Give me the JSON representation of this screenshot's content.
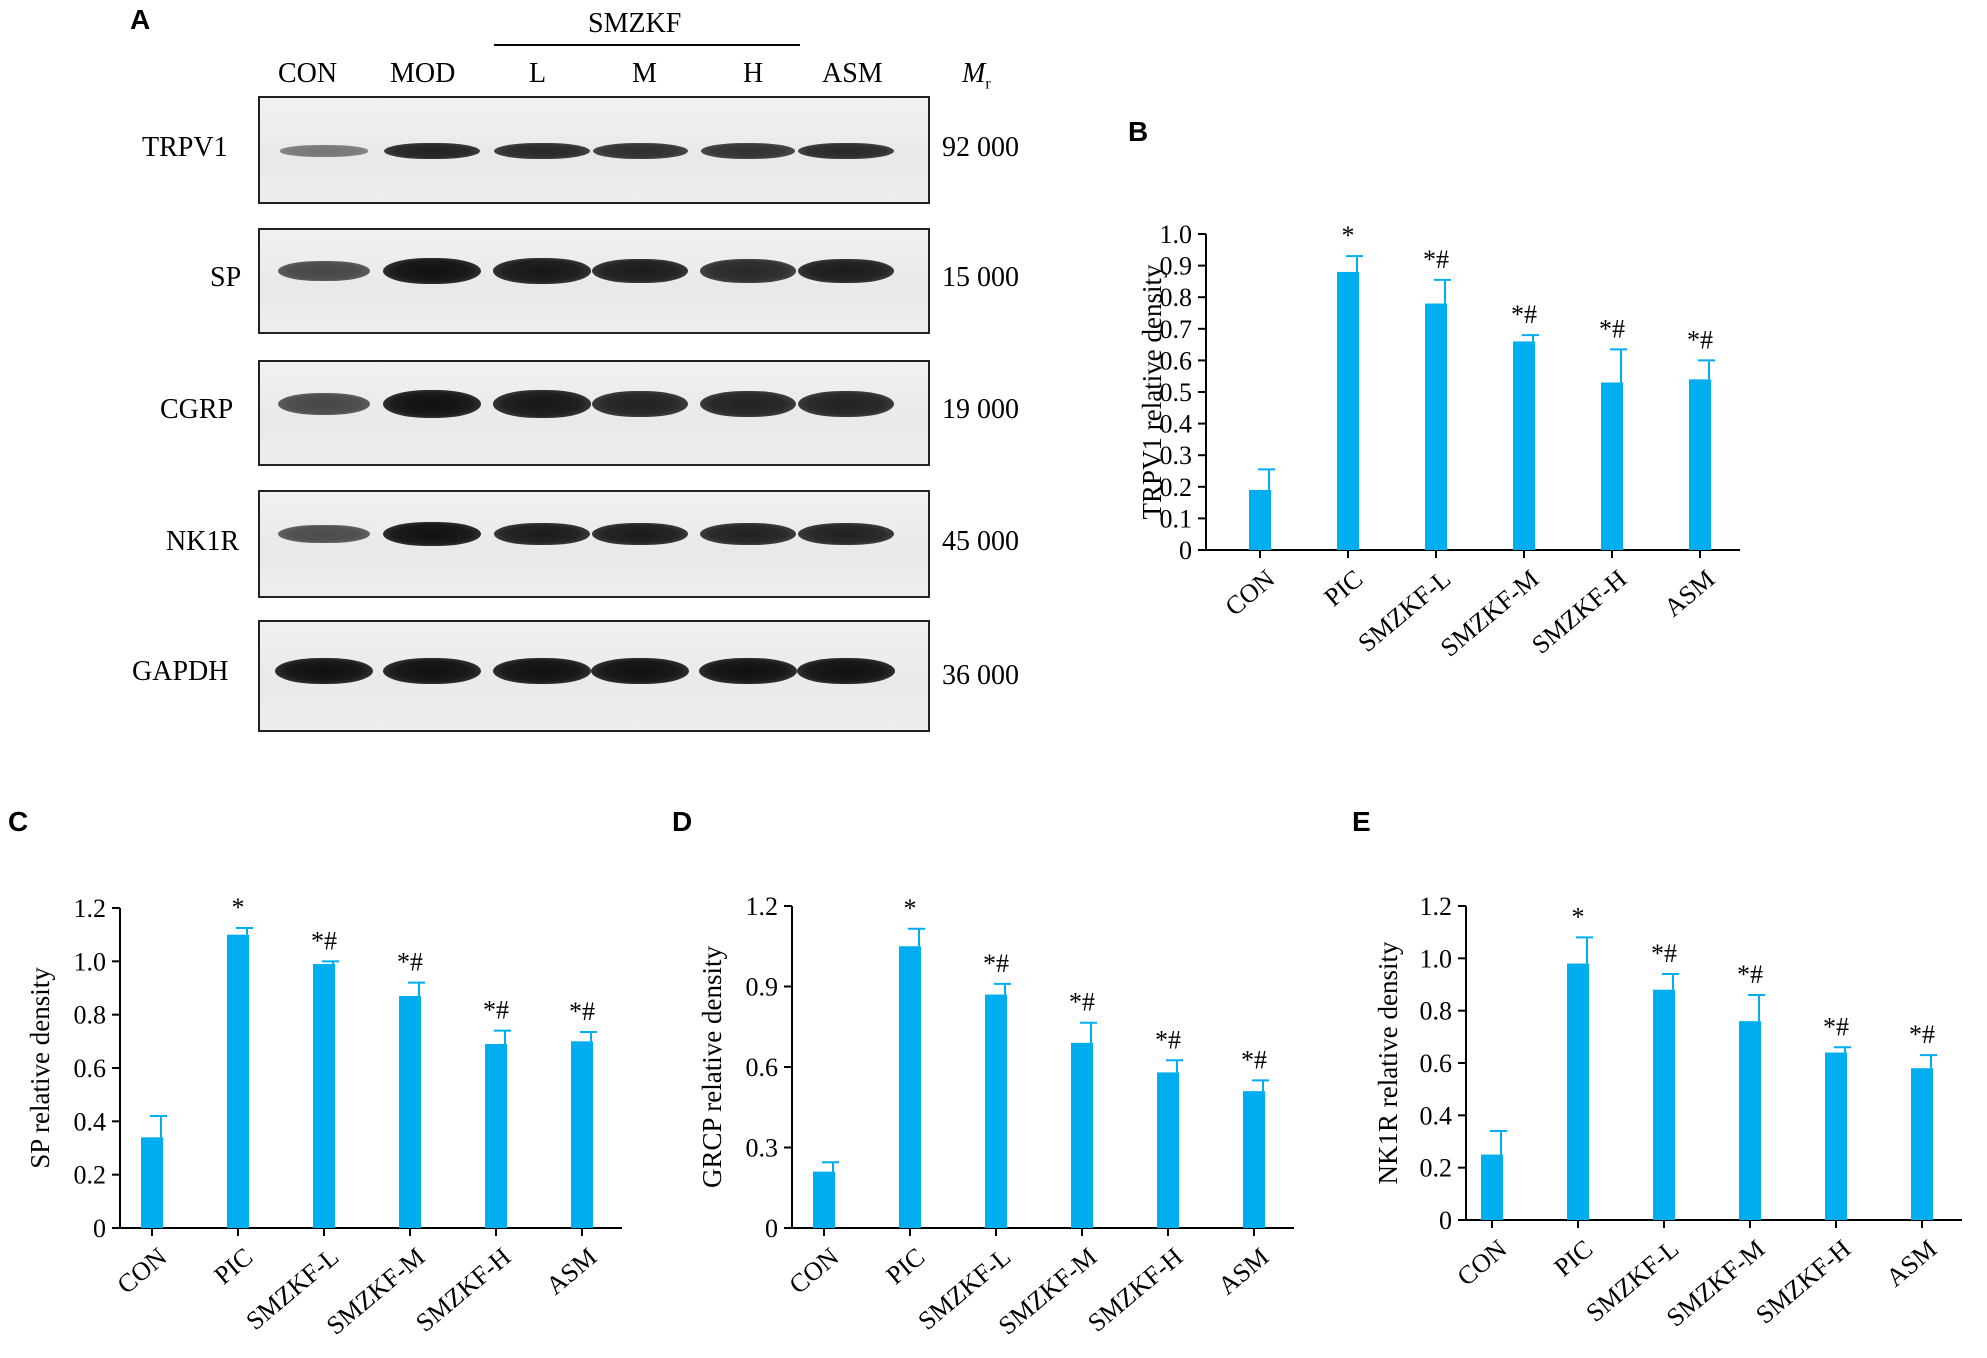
{
  "figure": {
    "panel_labels": {
      "a": "A",
      "b": "B",
      "c": "C",
      "d": "D",
      "e": "E"
    },
    "western_blot": {
      "group_header": "SMZKF",
      "lanes": [
        "CON",
        "MOD",
        "L",
        "M",
        "H",
        "ASM"
      ],
      "mr_label": "M",
      "mr_subscript": "r",
      "rows": [
        {
          "protein": "TRPV1",
          "mr": "92 000",
          "intensity": [
            0.15,
            0.85,
            0.8,
            0.75,
            0.72,
            0.8
          ]
        },
        {
          "protein": "SP",
          "mr": "15 000",
          "intensity": [
            0.55,
            1.0,
            0.95,
            0.9,
            0.8,
            0.9
          ]
        },
        {
          "protein": "CGRP",
          "mr": "19 000",
          "intensity": [
            0.55,
            1.0,
            0.95,
            0.85,
            0.85,
            0.85
          ]
        },
        {
          "protein": "NK1R",
          "mr": "45 000",
          "intensity": [
            0.5,
            1.0,
            0.9,
            0.9,
            0.85,
            0.85
          ]
        },
        {
          "protein": "GAPDH",
          "mr": "36 000",
          "intensity": [
            1.0,
            1.0,
            1.0,
            1.0,
            1.0,
            1.0
          ]
        }
      ]
    }
  },
  "chart_data": [
    {
      "panel": "B",
      "type": "bar",
      "categories": [
        "CON",
        "PIC",
        "SMZKF-L",
        "SMZKF-M",
        "SMZKF-H",
        "ASM"
      ],
      "values": [
        0.19,
        0.88,
        0.78,
        0.66,
        0.53,
        0.54
      ],
      "errors": [
        0.065,
        0.05,
        0.075,
        0.02,
        0.105,
        0.06
      ],
      "annotations": [
        "",
        "*",
        "*#",
        "*#",
        "*#",
        "*#"
      ],
      "ylabel": "TRPV1 relative density",
      "ylim": [
        0,
        1.0
      ],
      "yticks": [
        "0",
        "0.1",
        "0.2",
        "0.3",
        "0.4",
        "0.5",
        "0.6",
        "0.7",
        "0.8",
        "0.9",
        "1.0"
      ],
      "color": "#00aeef"
    },
    {
      "panel": "C",
      "type": "bar",
      "categories": [
        "CON",
        "PIC",
        "SMZKF-L",
        "SMZKF-M",
        "SMZKF-H",
        "ASM"
      ],
      "values": [
        0.34,
        1.1,
        0.99,
        0.87,
        0.69,
        0.7
      ],
      "errors": [
        0.08,
        0.025,
        0.01,
        0.05,
        0.05,
        0.035
      ],
      "annotations": [
        "",
        "*",
        "*#",
        "*#",
        "*#",
        "*#"
      ],
      "ylabel": "SP relative density",
      "ylim": [
        0,
        1.2
      ],
      "yticks": [
        "0",
        "0.2",
        "0.4",
        "0.6",
        "0.8",
        "1.0",
        "1.2"
      ],
      "color": "#00aeef"
    },
    {
      "panel": "D",
      "type": "bar",
      "categories": [
        "CON",
        "PIC",
        "SMZKF-L",
        "SMZKF-M",
        "SMZKF-H",
        "ASM"
      ],
      "values": [
        0.21,
        1.05,
        0.87,
        0.69,
        0.58,
        0.51
      ],
      "errors": [
        0.035,
        0.065,
        0.04,
        0.075,
        0.045,
        0.04
      ],
      "annotations": [
        "",
        "*",
        "*#",
        "*#",
        "*#",
        "*#"
      ],
      "ylabel": "GRCP relative density",
      "ylim": [
        0,
        1.2
      ],
      "yticks": [
        "0",
        "0.3",
        "0.6",
        "0.9",
        "1.2"
      ],
      "color": "#00aeef"
    },
    {
      "panel": "E",
      "type": "bar",
      "categories": [
        "CON",
        "PIC",
        "SMZKF-L",
        "SMZKF-M",
        "SMZKF-H",
        "ASM"
      ],
      "values": [
        0.25,
        0.98,
        0.88,
        0.76,
        0.64,
        0.58
      ],
      "errors": [
        0.09,
        0.1,
        0.06,
        0.1,
        0.02,
        0.05
      ],
      "annotations": [
        "",
        "*",
        "*#",
        "*#",
        "*#",
        "*#"
      ],
      "ylabel": "NK1R relative density",
      "ylim": [
        0,
        1.2
      ],
      "yticks": [
        "0",
        "0.2",
        "0.4",
        "0.6",
        "0.8",
        "1.0",
        "1.2"
      ],
      "color": "#00aeef"
    }
  ]
}
